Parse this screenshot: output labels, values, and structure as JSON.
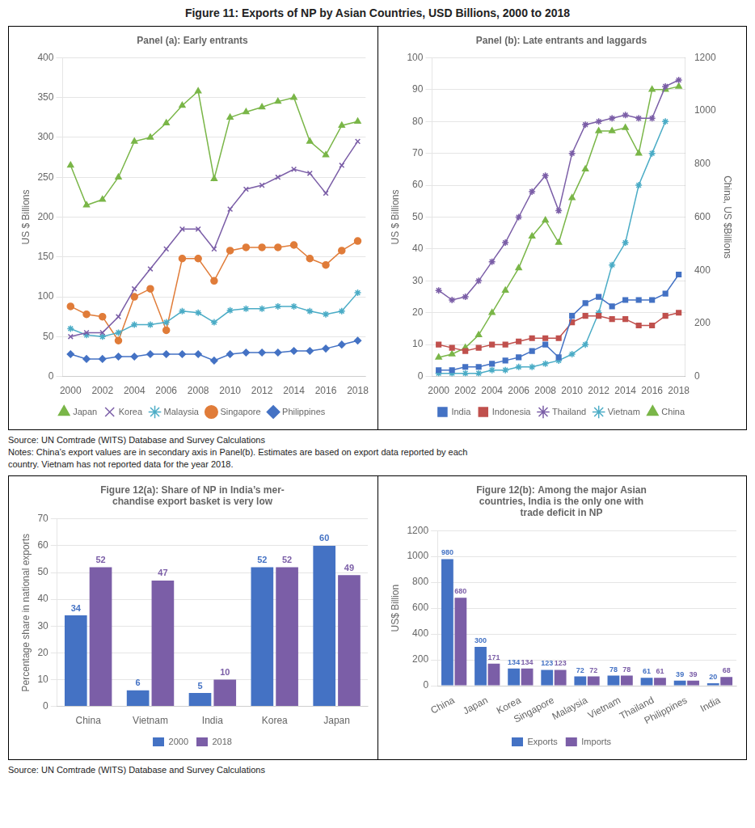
{
  "title": "Figure 11: Exports of NP by Asian Countries, USD Billions, 2000 to 2018",
  "annotations": [
    "Source: UN Comtrade (WITS) Database and Survey Calculations",
    "Notes: China’s export values are in secondary axis in Panel(b). Estimates are based on export data reported by each\ncountry. Vietnam has not reported data for the year 2018.",
    "Source: UN Comtrade (WITS) Database and Survey Calculations"
  ],
  "chart_data": [
    {
      "type": "line",
      "title": "Panel (a): Early entrants",
      "ylabel": "US $ Billions",
      "x": [
        2000,
        2001,
        2002,
        2003,
        2004,
        2005,
        2006,
        2007,
        2008,
        2009,
        2010,
        2011,
        2012,
        2013,
        2014,
        2015,
        2016,
        2017,
        2018
      ],
      "xlim": [
        1999.5,
        2018.5
      ],
      "xticks": [
        2000,
        2002,
        2004,
        2006,
        2008,
        2010,
        2012,
        2014,
        2016,
        2018
      ],
      "ylim": [
        0,
        400
      ],
      "yticks": [
        0,
        50,
        100,
        150,
        200,
        250,
        300,
        350,
        400
      ],
      "grid": "y",
      "legend": "bottom",
      "series": [
        {
          "name": "Japan",
          "color": "#7ab648",
          "marker": "triangle",
          "values": [
            265,
            215,
            222,
            250,
            295,
            300,
            318,
            340,
            358,
            248,
            325,
            332,
            338,
            345,
            350,
            295,
            278,
            315,
            320
          ]
        },
        {
          "name": "Korea",
          "color": "#7b5ea7",
          "marker": "x",
          "values": [
            50,
            55,
            55,
            75,
            110,
            135,
            160,
            185,
            185,
            160,
            210,
            235,
            240,
            250,
            260,
            255,
            230,
            265,
            295
          ]
        },
        {
          "name": "Malaysia",
          "color": "#4bacc6",
          "marker": "star",
          "values": [
            60,
            52,
            50,
            55,
            65,
            65,
            68,
            82,
            80,
            68,
            83,
            85,
            85,
            88,
            88,
            82,
            78,
            82,
            105
          ]
        },
        {
          "name": "Singapore",
          "color": "#e07c39",
          "marker": "circle",
          "values": [
            88,
            78,
            75,
            45,
            100,
            110,
            58,
            148,
            148,
            120,
            158,
            162,
            162,
            162,
            165,
            148,
            140,
            158,
            170
          ]
        },
        {
          "name": "Philippines",
          "color": "#4472c4",
          "marker": "diamond",
          "values": [
            28,
            22,
            22,
            25,
            25,
            28,
            28,
            28,
            28,
            20,
            28,
            30,
            30,
            30,
            32,
            32,
            35,
            40,
            45
          ]
        }
      ]
    },
    {
      "type": "line",
      "title": "Panel (b): Late entrants and laggards",
      "ylabel": "US $ Billions",
      "y2label": "China, US $Billions",
      "x": [
        2000,
        2001,
        2002,
        2003,
        2004,
        2005,
        2006,
        2007,
        2008,
        2009,
        2010,
        2011,
        2012,
        2013,
        2014,
        2015,
        2016,
        2017,
        2018
      ],
      "xlim": [
        1999.5,
        2018.5
      ],
      "xticks": [
        2000,
        2002,
        2004,
        2006,
        2008,
        2010,
        2012,
        2014,
        2016,
        2018
      ],
      "ylim": [
        0,
        100
      ],
      "yticks": [
        0,
        10,
        20,
        30,
        40,
        50,
        60,
        70,
        80,
        90,
        100
      ],
      "y2lim": [
        0,
        1200
      ],
      "y2ticks": [
        0,
        200,
        400,
        600,
        800,
        1000,
        1200
      ],
      "grid": "y",
      "legend": "bottom",
      "series": [
        {
          "name": "India",
          "color": "#4472c4",
          "marker": "square",
          "values": [
            2,
            2,
            3,
            3,
            4,
            5,
            6,
            8,
            10,
            6,
            19,
            23,
            25,
            22,
            24,
            24,
            24,
            26,
            32
          ]
        },
        {
          "name": "Indonesia",
          "color": "#c0504d",
          "marker": "square",
          "values": [
            10,
            9,
            8,
            9,
            10,
            10,
            11,
            12,
            12,
            12,
            17,
            19,
            19,
            18,
            18,
            16,
            16,
            19,
            20
          ]
        },
        {
          "name": "Thailand",
          "color": "#7b5ea7",
          "marker": "star",
          "values": [
            27,
            24,
            25,
            30,
            36,
            42,
            50,
            58,
            63,
            52,
            70,
            79,
            80,
            81,
            82,
            81,
            81,
            91,
            93
          ]
        },
        {
          "name": "Vietnam",
          "color": "#4bacc6",
          "marker": "star",
          "values": [
            1,
            1,
            1,
            1,
            2,
            2,
            3,
            3,
            4,
            5,
            7,
            10,
            20,
            35,
            42,
            60,
            70,
            80,
            null
          ]
        },
        {
          "name": "China",
          "color": "#7ab648",
          "marker": "triangle",
          "axis": "y2",
          "values": [
            72,
            84,
            108,
            156,
            240,
            324,
            408,
            528,
            588,
            504,
            672,
            780,
            924,
            924,
            936,
            840,
            1080,
            1080,
            1092
          ]
        }
      ]
    },
    {
      "type": "bar",
      "title": "Figure 12(a): Share of NP in India’s mer-\nchandise export basket is very low",
      "ylabel": "Percentage share in national exports",
      "categories": [
        "China",
        "Vietnam",
        "India",
        "Korea",
        "Japan"
      ],
      "ylim": [
        0,
        70
      ],
      "yticks": [
        0,
        10,
        20,
        30,
        40,
        50,
        60,
        70
      ],
      "grid": "y",
      "legend": "bottom",
      "data_labels": true,
      "series": [
        {
          "name": "2000",
          "color": "#4472c4",
          "values": [
            34,
            6,
            5,
            52,
            60
          ]
        },
        {
          "name": "2018",
          "color": "#7b5ea7",
          "values": [
            52,
            47,
            10,
            52,
            49
          ]
        }
      ]
    },
    {
      "type": "bar",
      "title": "Figure 12(b): Among the major Asian\ncountries, India is the only one with\ntrade deficit in NP",
      "ylabel": "US$ Billion",
      "categories": [
        "China",
        "Japan",
        "Korea",
        "Singapore",
        "Malaysia",
        "Vietnam",
        "Thailand",
        "Philippines",
        "India"
      ],
      "ylim": [
        0,
        1200
      ],
      "yticks": [
        0,
        200,
        400,
        600,
        800,
        1000,
        1200
      ],
      "grid": "y",
      "legend": "bottom",
      "data_labels": true,
      "series": [
        {
          "name": "Exports",
          "color": "#4472c4",
          "values": [
            980,
            300,
            134,
            123,
            72,
            78,
            61,
            39,
            20
          ]
        },
        {
          "name": "Imports",
          "color": "#7b5ea7",
          "values": [
            680,
            171,
            134,
            123,
            72,
            78,
            61,
            39,
            68
          ]
        }
      ]
    }
  ]
}
